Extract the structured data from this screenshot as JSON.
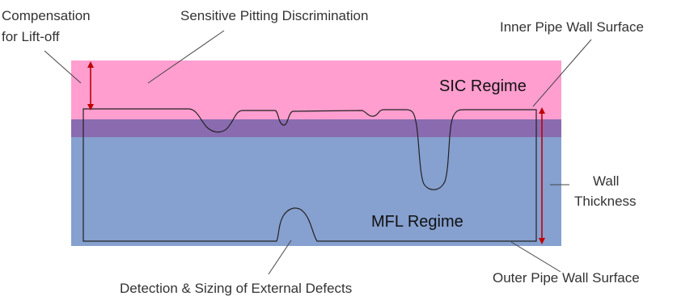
{
  "labels": {
    "compensation_line1": "Compensation",
    "compensation_line2": "for Lift-off",
    "sensitive_pitting": "Sensitive Pitting Discrimination",
    "inner_surface": "Inner Pipe Wall Surface",
    "sic_regime": "SIC Regime",
    "mfl_regime": "MFL Regime",
    "wall_line1": "Wall",
    "wall_line2": "Thickness",
    "external_defects": "Detection & Sizing of External Defects",
    "outer_surface": "Outer Pipe Wall Surface"
  },
  "colors": {
    "sic_zone": "#ff9ecf",
    "overlap_zone": "#8a6bb0",
    "mfl_zone": "#86a0cf",
    "arrow": "#c00000",
    "leader_line": "#444444",
    "wall_outline": "#222222"
  }
}
